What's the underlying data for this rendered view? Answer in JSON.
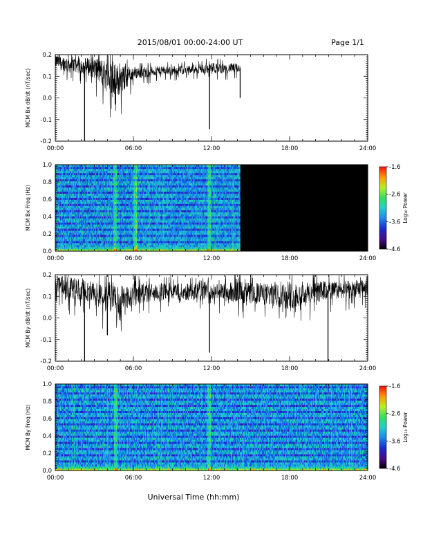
{
  "header": {
    "date_range": "2015/08/01  00:00-24:00 UT",
    "page_label": "Page 1/1"
  },
  "xlabel": "Universal Time (hh:mm)",
  "chart_data": [
    {
      "type": "line",
      "ylabel": "MCM Bx dB/dt (nT/sec)",
      "xlim": [
        0,
        24
      ],
      "ylim": [
        -0.2,
        0.2
      ],
      "x_tick_labels": [
        "00:00",
        "06:00",
        "12:00",
        "18:00",
        "24:00"
      ],
      "y_tick_labels": [
        "-0.2",
        "-0.1",
        "0.0",
        "0.1",
        "0.2"
      ],
      "color": "#000000",
      "data_end_hour": 14.2,
      "baseline_profile": {
        "x": [
          0,
          1,
          2,
          3,
          4,
          5,
          6,
          8,
          10,
          12,
          14.2
        ],
        "center": [
          0.17,
          0.155,
          0.15,
          0.14,
          0.1,
          0.08,
          0.115,
          0.125,
          0.13,
          0.135,
          0.14
        ],
        "spread": [
          0.03,
          0.04,
          0.035,
          0.05,
          0.08,
          0.07,
          0.03,
          0.02,
          0.02,
          0.025,
          0.02
        ]
      },
      "spikes": [
        {
          "x": 2.25,
          "y": -0.2
        },
        {
          "x": 4.6,
          "y": -0.03
        },
        {
          "x": 11.85,
          "y": -0.145
        },
        {
          "x": 14.2,
          "y": 0.0
        }
      ]
    },
    {
      "type": "heatmap",
      "ylabel": "MCM Bx Freq (Hz)",
      "xlim": [
        0,
        24
      ],
      "ylim": [
        0,
        1
      ],
      "x_tick_labels": [
        "00:00",
        "06:00",
        "12:00",
        "18:00",
        "24:00"
      ],
      "y_tick_labels": [
        "0.0",
        "0.2",
        "0.4",
        "0.6",
        "0.8",
        "1.0"
      ],
      "data_end_hour": 14.2,
      "colorbar": {
        "label": "Log₁₀ Power",
        "range": [
          -4.6,
          -1.6
        ],
        "tick_labels": [
          "-1.6",
          "-2.6",
          "-3.6",
          "-4.6"
        ]
      },
      "bright_columns_hours": [
        4.6,
        6.1,
        11.8
      ]
    },
    {
      "type": "line",
      "ylabel": "MCM By dB/dt (nT/sec)",
      "xlim": [
        0,
        24
      ],
      "ylim": [
        -0.2,
        0.2
      ],
      "x_tick_labels": [
        "00:00",
        "06:00",
        "12:00",
        "18:00",
        "24:00"
      ],
      "y_tick_labels": [
        "-0.2",
        "-0.1",
        "0.0",
        "0.1",
        "0.2"
      ],
      "color": "#000000",
      "data_end_hour": 24,
      "baseline_profile": {
        "x": [
          0,
          1,
          2,
          3,
          4,
          5,
          6,
          8,
          10,
          12,
          14,
          16,
          18,
          20,
          22,
          24
        ],
        "center": [
          0.16,
          0.14,
          0.13,
          0.12,
          0.1,
          0.08,
          0.11,
          0.12,
          0.12,
          0.12,
          0.12,
          0.11,
          0.1,
          0.12,
          0.13,
          0.14
        ],
        "spread": [
          0.04,
          0.05,
          0.05,
          0.05,
          0.07,
          0.07,
          0.05,
          0.04,
          0.04,
          0.04,
          0.05,
          0.05,
          0.06,
          0.05,
          0.04,
          0.04
        ]
      },
      "spikes": [
        {
          "x": 2.25,
          "y": -0.2
        },
        {
          "x": 4.0,
          "y": -0.08
        },
        {
          "x": 11.85,
          "y": -0.16
        },
        {
          "x": 20.95,
          "y": -0.2
        }
      ]
    },
    {
      "type": "heatmap",
      "ylabel": "MCM By Freq (Hz)",
      "xlim": [
        0,
        24
      ],
      "ylim": [
        0,
        1
      ],
      "x_tick_labels": [
        "00:00",
        "06:00",
        "12:00",
        "18:00",
        "24:00"
      ],
      "y_tick_labels": [
        "0.0",
        "0.2",
        "0.4",
        "0.6",
        "0.8",
        "1.0"
      ],
      "data_end_hour": 24,
      "colorbar": {
        "label": "Log₁₀ Power",
        "range": [
          -4.6,
          -1.6
        ],
        "tick_labels": [
          "-1.6",
          "-2.6",
          "-3.6",
          "-4.6"
        ]
      },
      "bright_columns_hours": [
        4.6,
        11.8
      ]
    }
  ]
}
